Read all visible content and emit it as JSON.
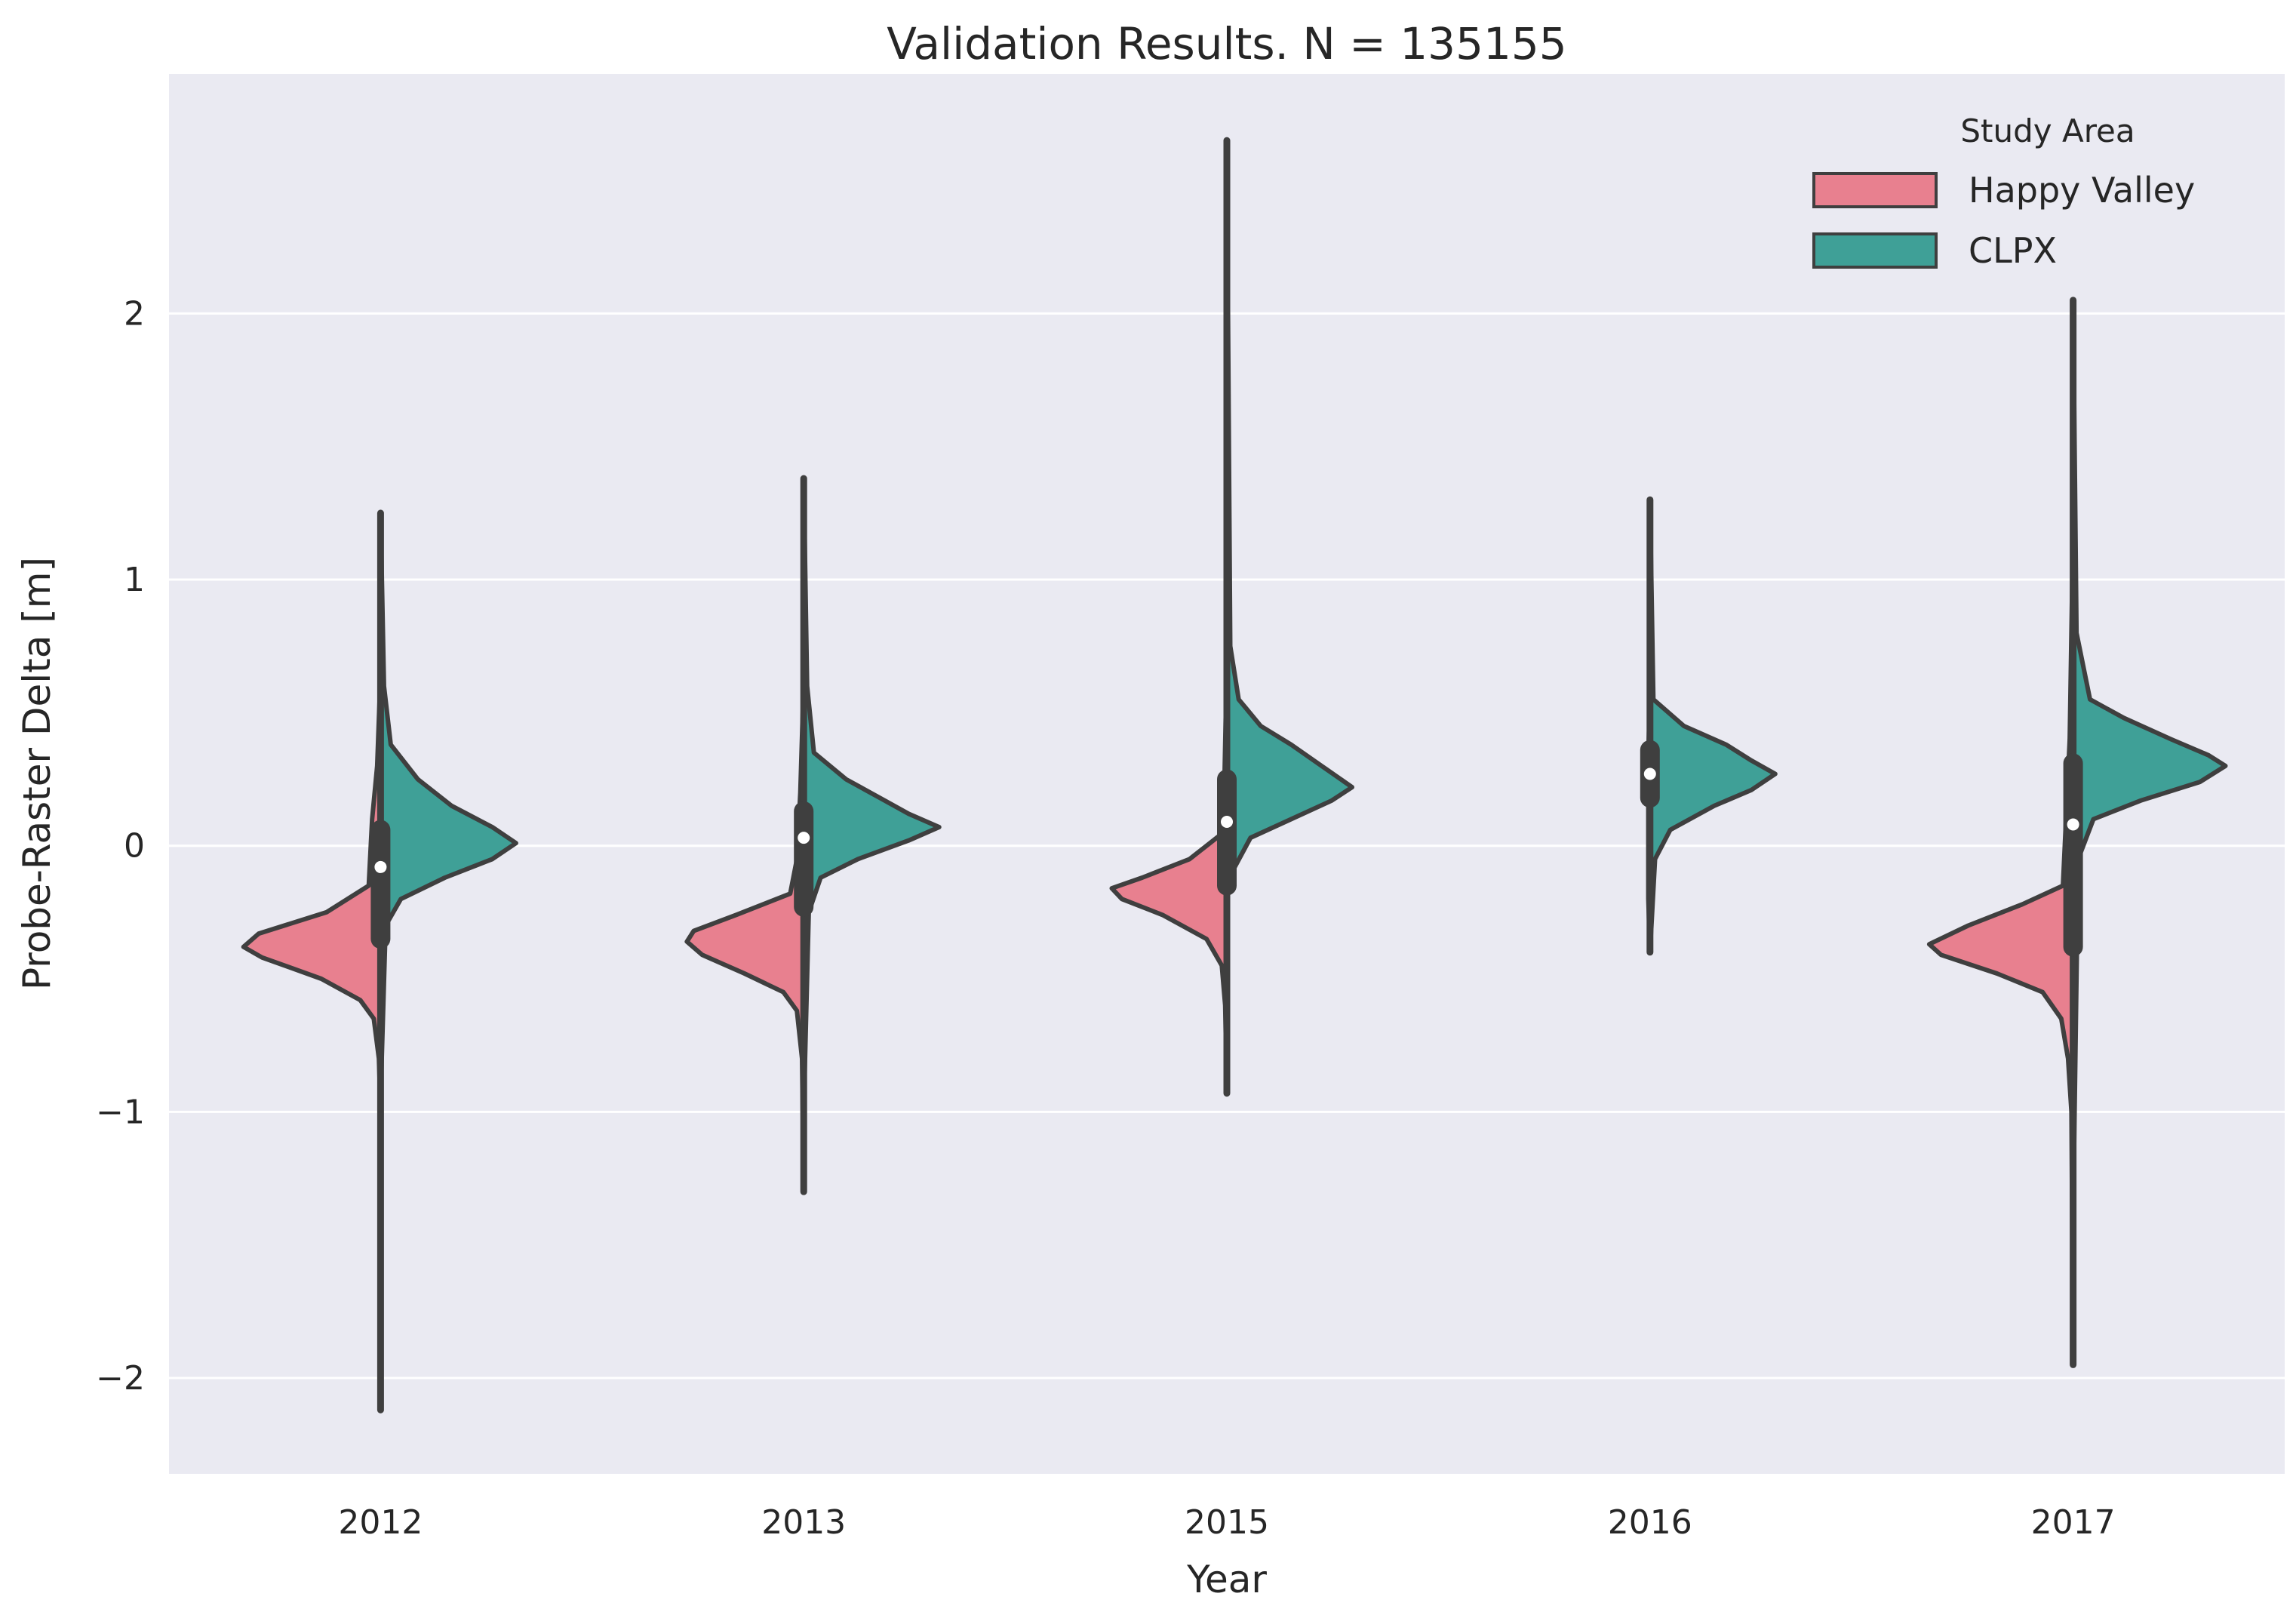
{
  "chart_data": {
    "type": "violin",
    "title": "Validation Results. N = 135155",
    "xlabel": "Year",
    "ylabel": "Probe-Raster Delta [m]",
    "ylim": [
      -2.36,
      2.9
    ],
    "yticks": [
      -2,
      -1,
      0,
      1,
      2
    ],
    "ytick_labels": [
      "−2",
      "−1",
      "0",
      "1",
      "2"
    ],
    "grid": true,
    "legend_position": "top-right",
    "legend_title": "Study Area",
    "categories": [
      "2012",
      "2013",
      "2015",
      "2016",
      "2017"
    ],
    "series": [
      {
        "name": "Happy Valley",
        "color": "#e8808f",
        "side": "left",
        "violins": [
          {
            "category": "2012",
            "min": -2.12,
            "max": 0.65,
            "density": [
              [
                0.65,
                0
              ],
              [
                0.3,
                0.02
              ],
              [
                0.1,
                0.05
              ],
              [
                -0.15,
                0.07
              ],
              [
                -0.25,
                0.32
              ],
              [
                -0.33,
                0.72
              ],
              [
                -0.38,
                0.81
              ],
              [
                -0.42,
                0.7
              ],
              [
                -0.5,
                0.35
              ],
              [
                -0.58,
                0.12
              ],
              [
                -0.65,
                0.04
              ],
              [
                -0.8,
                0.01
              ],
              [
                -1.0,
                0
              ],
              [
                -2.12,
                0
              ]
            ]
          },
          {
            "category": "2013",
            "min": -1.3,
            "max": 0.62,
            "density": [
              [
                0.62,
                0
              ],
              [
                0.2,
                0.02
              ],
              [
                -0.05,
                0.04
              ],
              [
                -0.18,
                0.08
              ],
              [
                -0.26,
                0.4
              ],
              [
                -0.32,
                0.65
              ],
              [
                -0.36,
                0.69
              ],
              [
                -0.41,
                0.6
              ],
              [
                -0.48,
                0.35
              ],
              [
                -0.55,
                0.12
              ],
              [
                -0.62,
                0.04
              ],
              [
                -0.8,
                0.01
              ],
              [
                -1.3,
                0
              ]
            ]
          },
          {
            "category": "2015",
            "min": -0.93,
            "max": 0.7,
            "density": [
              [
                0.7,
                0
              ],
              [
                0.05,
                0.02
              ],
              [
                -0.05,
                0.22
              ],
              [
                -0.12,
                0.5
              ],
              [
                -0.16,
                0.68
              ],
              [
                -0.2,
                0.62
              ],
              [
                -0.26,
                0.38
              ],
              [
                -0.35,
                0.12
              ],
              [
                -0.45,
                0.03
              ],
              [
                -0.6,
                0.01
              ],
              [
                -0.93,
                0
              ]
            ]
          },
          {
            "category": "2016",
            "min": -0.4,
            "max": 0.55,
            "density": [
              [
                0.55,
                0
              ],
              [
                0.35,
                0.01
              ],
              [
                0.18,
                0.01
              ],
              [
                0,
                0.01
              ],
              [
                -0.2,
                0.01
              ],
              [
                -0.4,
                0
              ]
            ]
          },
          {
            "category": "2017",
            "min": -1.95,
            "max": 1.2,
            "density": [
              [
                1.2,
                0
              ],
              [
                0.4,
                0.02
              ],
              [
                -0.15,
                0.06
              ],
              [
                -0.22,
                0.3
              ],
              [
                -0.3,
                0.62
              ],
              [
                -0.37,
                0.85
              ],
              [
                -0.41,
                0.78
              ],
              [
                -0.48,
                0.45
              ],
              [
                -0.55,
                0.18
              ],
              [
                -0.65,
                0.07
              ],
              [
                -0.8,
                0.03
              ],
              [
                -1.0,
                0.01
              ],
              [
                -1.95,
                0
              ]
            ]
          }
        ]
      },
      {
        "name": "CLPX",
        "color": "#3fa097",
        "side": "right",
        "violins": [
          {
            "category": "2012",
            "min": -0.95,
            "max": 1.25,
            "density": [
              [
                1.25,
                0
              ],
              [
                0.6,
                0.02
              ],
              [
                0.38,
                0.06
              ],
              [
                0.25,
                0.22
              ],
              [
                0.15,
                0.42
              ],
              [
                0.07,
                0.66
              ],
              [
                0.01,
                0.8
              ],
              [
                -0.05,
                0.66
              ],
              [
                -0.12,
                0.38
              ],
              [
                -0.2,
                0.12
              ],
              [
                -0.3,
                0.03
              ],
              [
                -0.95,
                0
              ]
            ]
          },
          {
            "category": "2013",
            "min": -1.0,
            "max": 1.38,
            "density": [
              [
                1.38,
                0
              ],
              [
                0.6,
                0.02
              ],
              [
                0.35,
                0.06
              ],
              [
                0.25,
                0.25
              ],
              [
                0.18,
                0.45
              ],
              [
                0.12,
                0.62
              ],
              [
                0.07,
                0.8
              ],
              [
                0.02,
                0.62
              ],
              [
                -0.05,
                0.32
              ],
              [
                -0.12,
                0.1
              ],
              [
                -0.25,
                0.03
              ],
              [
                -1.0,
                0
              ]
            ]
          },
          {
            "category": "2015",
            "min": -0.2,
            "max": 2.65,
            "density": [
              [
                2.65,
                0
              ],
              [
                0.75,
                0.02
              ],
              [
                0.55,
                0.07
              ],
              [
                0.45,
                0.2
              ],
              [
                0.38,
                0.38
              ],
              [
                0.3,
                0.56
              ],
              [
                0.22,
                0.74
              ],
              [
                0.17,
                0.62
              ],
              [
                0.1,
                0.38
              ],
              [
                0.03,
                0.14
              ],
              [
                -0.1,
                0.03
              ],
              [
                -0.2,
                0
              ]
            ]
          },
          {
            "category": "2016",
            "min": -0.4,
            "max": 1.3,
            "density": [
              [
                1.3,
                0
              ],
              [
                0.55,
                0.02
              ],
              [
                0.45,
                0.2
              ],
              [
                0.38,
                0.45
              ],
              [
                0.32,
                0.6
              ],
              [
                0.27,
                0.74
              ],
              [
                0.21,
                0.6
              ],
              [
                0.15,
                0.38
              ],
              [
                0.06,
                0.12
              ],
              [
                -0.05,
                0.03
              ],
              [
                -0.4,
                0
              ]
            ]
          },
          {
            "category": "2017",
            "min": -1.4,
            "max": 2.05,
            "density": [
              [
                2.05,
                0
              ],
              [
                0.8,
                0.02
              ],
              [
                0.55,
                0.1
              ],
              [
                0.48,
                0.3
              ],
              [
                0.4,
                0.58
              ],
              [
                0.34,
                0.8
              ],
              [
                0.3,
                0.9
              ],
              [
                0.24,
                0.75
              ],
              [
                0.17,
                0.4
              ],
              [
                0.1,
                0.12
              ],
              [
                -0.05,
                0.03
              ],
              [
                -1.4,
                0
              ]
            ]
          }
        ]
      }
    ],
    "box_summary": [
      {
        "category": "2012",
        "q1": -0.35,
        "median": -0.08,
        "q3": 0.06
      },
      {
        "category": "2013",
        "q1": -0.23,
        "median": 0.03,
        "q3": 0.13
      },
      {
        "category": "2015",
        "q1": -0.15,
        "median": 0.09,
        "q3": 0.25
      },
      {
        "category": "2016",
        "q1": 0.18,
        "median": 0.27,
        "q3": 0.36
      },
      {
        "category": "2017",
        "q1": -0.38,
        "median": 0.08,
        "q3": 0.31
      }
    ]
  },
  "colors": {
    "background": "#eaeaf2",
    "grid": "#ffffff",
    "edge": "#3f3f3f",
    "median": "#ffffff"
  }
}
